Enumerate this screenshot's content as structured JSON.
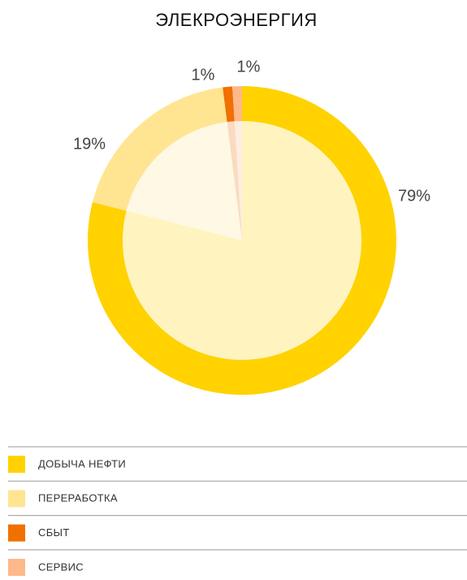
{
  "chart_data": {
    "type": "pie",
    "title": "ЭЛЕКРОЭНЕРГИЯ",
    "categories": [
      "ДОБЫЧА НЕФТИ",
      "ПЕРЕРАБОТКА",
      "СБЫТ",
      "СЕРВИС"
    ],
    "values": [
      79,
      19,
      1,
      1
    ],
    "value_labels": [
      "79%",
      "19%",
      "1%",
      "1%"
    ],
    "colors": [
      "#ffd200",
      "#ffe592",
      "#f07000",
      "#fdb98a"
    ]
  }
}
